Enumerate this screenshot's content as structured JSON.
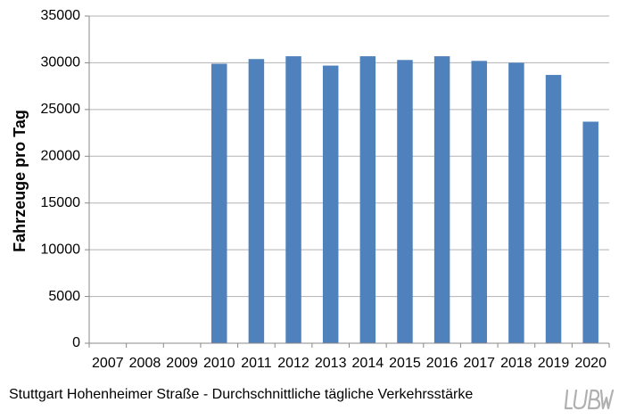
{
  "chart_data": {
    "type": "bar",
    "title": "",
    "xlabel": "",
    "ylabel": "Fahrzeuge pro Tag",
    "ylim": [
      0,
      35000
    ],
    "yticks": [
      0,
      5000,
      10000,
      15000,
      20000,
      25000,
      30000,
      35000
    ],
    "grid": "horizontal",
    "categories": [
      "2007",
      "2008",
      "2009",
      "2010",
      "2011",
      "2012",
      "2013",
      "2014",
      "2015",
      "2016",
      "2017",
      "2018",
      "2019",
      "2020"
    ],
    "values": [
      null,
      null,
      null,
      29900,
      30400,
      30700,
      29700,
      30700,
      30300,
      30700,
      30200,
      30000,
      28700,
      23700
    ],
    "bar_color": "#4f81bd"
  },
  "caption": "Stuttgart Hohenheimer Straße - Durchschnittliche tägliche Verkehrsstärke",
  "logo_text": "LUBW"
}
